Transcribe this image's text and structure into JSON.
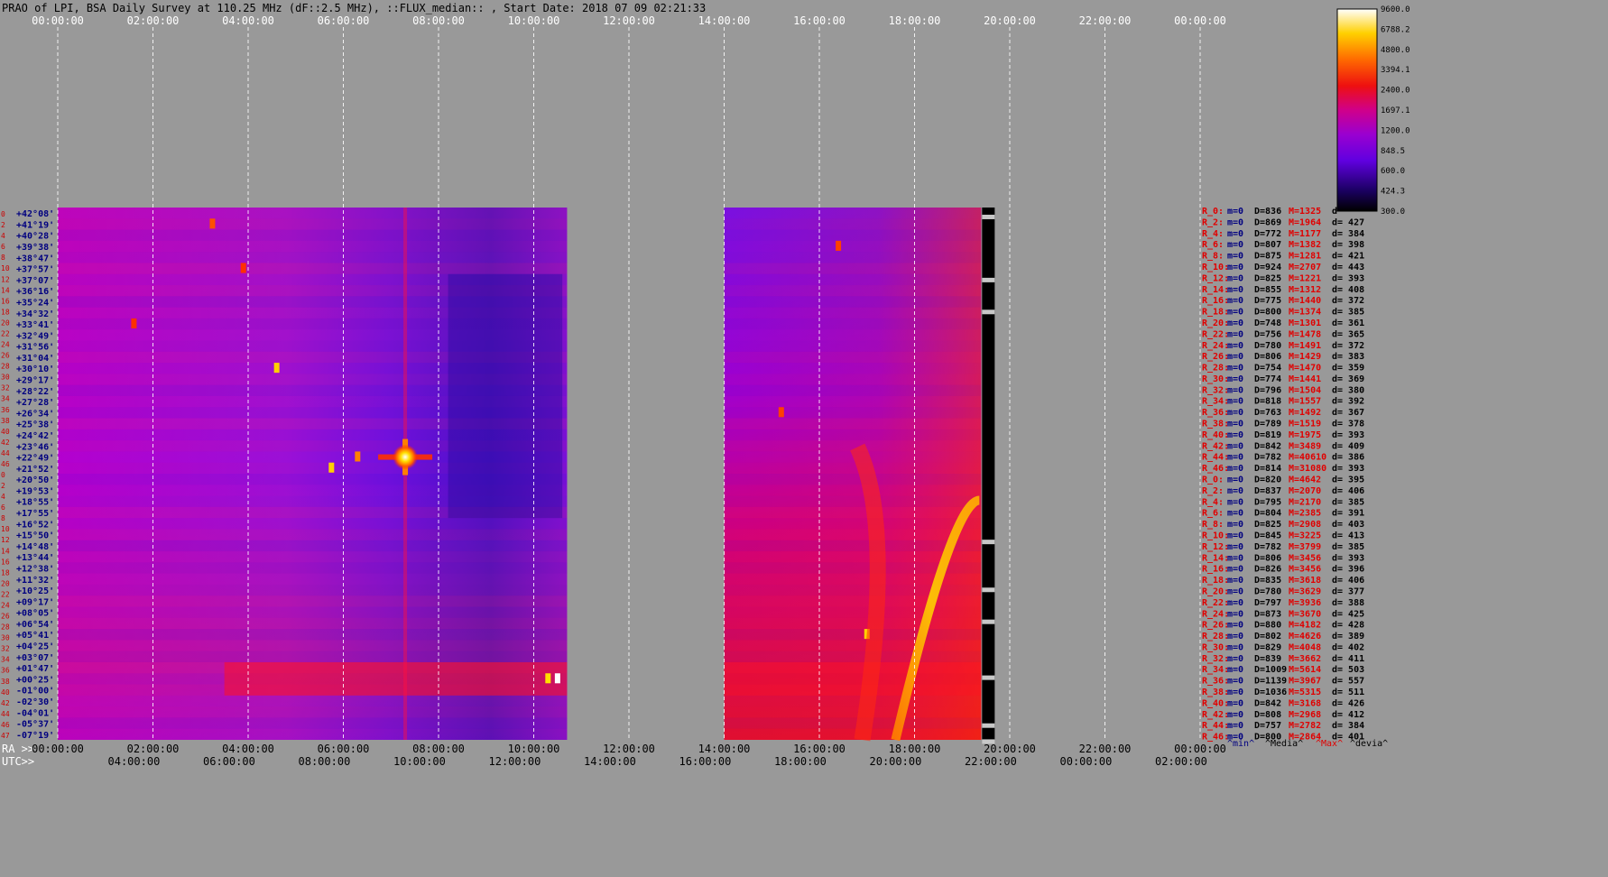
{
  "chart_data": {
    "type": "heatmap",
    "title": "PRAO of LPI, BSA Daily Survey at 110.25 MHz (dF::2.5 MHz), ::FLUX_median:: , Start Date: 2018 07 09 02:21:33",
    "top_axis_ticks": [
      "00:00:00",
      "02:00:00",
      "04:00:00",
      "06:00:00",
      "08:00:00",
      "10:00:00",
      "12:00:00",
      "14:00:00",
      "16:00:00",
      "18:00:00",
      "20:00:00",
      "22:00:00",
      "00:00:00"
    ],
    "ra_axis_label": "RA >>",
    "ra_axis_ticks": [
      "00:00:00",
      "02:00:00",
      "04:00:00",
      "06:00:00",
      "08:00:00",
      "10:00:00",
      "12:00:00",
      "14:00:00",
      "16:00:00",
      "18:00:00",
      "20:00:00",
      "22:00:00",
      "00:00:00"
    ],
    "utc_axis_label": "UTC>>",
    "utc_axis_ticks": [
      "04:00:00",
      "06:00:00",
      "08:00:00",
      "10:00:00",
      "12:00:00",
      "14:00:00",
      "16:00:00",
      "18:00:00",
      "20:00:00",
      "22:00:00",
      "00:00:00",
      "02:00:00"
    ],
    "colorbar_ticks": [
      "9600.0",
      "6788.2",
      "4800.0",
      "3394.1",
      "2400.0",
      "1697.1",
      "1200.0",
      "848.5",
      "600.0",
      "424.3",
      "300.0"
    ],
    "colorbar_range": [
      300,
      9600
    ],
    "colorbar_scale": "log",
    "data_gap_hours": [
      10.7,
      14.0
    ],
    "data_end_hours": 19.4,
    "declinations": [
      "+42°08'",
      "+41°19'",
      "+40°28'",
      "+39°38'",
      "+38°47'",
      "+37°57'",
      "+37°07'",
      "+36°16'",
      "+35°24'",
      "+34°32'",
      "+33°41'",
      "+32°49'",
      "+31°56'",
      "+31°04'",
      "+30°10'",
      "+29°17'",
      "+28°22'",
      "+27°28'",
      "+26°34'",
      "+25°38'",
      "+24°42'",
      "+23°46'",
      "+22°49'",
      "+21°52'",
      "+20°50'",
      "+19°53'",
      "+18°55'",
      "+17°55'",
      "+16°52'",
      "+15°50'",
      "+14°48'",
      "+13°44'",
      "+12°38'",
      "+11°32'",
      "+10°25'",
      "+09°17'",
      "+08°05'",
      "+06°54'",
      "+05°41'",
      "+04°25'",
      "+03°07'",
      "+01°47'",
      "+00°25'",
      "-01°00'",
      "-02°30'",
      "-04°01'",
      "-05°37'",
      "-07°19'"
    ],
    "row_numbers": [
      "0",
      "2",
      "4",
      "6",
      "8",
      "10",
      "12",
      "14",
      "16",
      "18",
      "20",
      "22",
      "24",
      "26",
      "28",
      "30",
      "32",
      "34",
      "36",
      "38",
      "40",
      "42",
      "44",
      "46",
      "0",
      "2",
      "4",
      "6",
      "8",
      "10",
      "12",
      "14",
      "16",
      "18",
      "20",
      "22",
      "24",
      "26",
      "28",
      "30",
      "32",
      "34",
      "36",
      "38",
      "40",
      "42",
      "44",
      "46",
      "47"
    ],
    "stats_rows": [
      {
        "label": "R_0:",
        "m": "m=0",
        "D": "D=836",
        "M": "M=1325",
        "d": "d"
      },
      {
        "label": "R_2:",
        "m": "m=0",
        "D": "D=869",
        "M": "M=1964",
        "d": "d= 427"
      },
      {
        "label": "R_4:",
        "m": "m=0",
        "D": "D=772",
        "M": "M=1177",
        "d": "d= 384"
      },
      {
        "label": "R_6:",
        "m": "m=0",
        "D": "D=807",
        "M": "M=1382",
        "d": "d= 398"
      },
      {
        "label": "R_8:",
        "m": "m=0",
        "D": "D=875",
        "M": "M=1281",
        "d": "d= 421"
      },
      {
        "label": "R_10:",
        "m": "m=0",
        "D": "D=924",
        "M": "M=2707",
        "d": "d= 443"
      },
      {
        "label": "R_12:",
        "m": "m=0",
        "D": "D=825",
        "M": "M=1221",
        "d": "d= 393"
      },
      {
        "label": "R_14:",
        "m": "m=0",
        "D": "D=855",
        "M": "M=1312",
        "d": "d= 408"
      },
      {
        "label": "R_16:",
        "m": "m=0",
        "D": "D=775",
        "M": "M=1440",
        "d": "d= 372"
      },
      {
        "label": "R_18:",
        "m": "m=0",
        "D": "D=800",
        "M": "M=1374",
        "d": "d= 385"
      },
      {
        "label": "R_20:",
        "m": "m=0",
        "D": "D=748",
        "M": "M=1301",
        "d": "d= 361"
      },
      {
        "label": "R_22:",
        "m": "m=0",
        "D": "D=756",
        "M": "M=1478",
        "d": "d= 365"
      },
      {
        "label": "R_24:",
        "m": "m=0",
        "D": "D=780",
        "M": "M=1491",
        "d": "d= 372"
      },
      {
        "label": "R_26:",
        "m": "m=0",
        "D": "D=806",
        "M": "M=1429",
        "d": "d= 383"
      },
      {
        "label": "R_28:",
        "m": "m=0",
        "D": "D=754",
        "M": "M=1470",
        "d": "d= 359"
      },
      {
        "label": "R_30:",
        "m": "m=0",
        "D": "D=774",
        "M": "M=1441",
        "d": "d= 369"
      },
      {
        "label": "R_32:",
        "m": "m=0",
        "D": "D=796",
        "M": "M=1504",
        "d": "d= 380"
      },
      {
        "label": "R_34:",
        "m": "m=0",
        "D": "D=818",
        "M": "M=1557",
        "d": "d= 392"
      },
      {
        "label": "R_36:",
        "m": "m=0",
        "D": "D=763",
        "M": "M=1492",
        "d": "d= 367"
      },
      {
        "label": "R_38:",
        "m": "m=0",
        "D": "D=789",
        "M": "M=1519",
        "d": "d= 378"
      },
      {
        "label": "R_40:",
        "m": "m=0",
        "D": "D=819",
        "M": "M=1975",
        "d": "d= 393"
      },
      {
        "label": "R_42:",
        "m": "m=0",
        "D": "D=842",
        "M": "M=3489",
        "d": "d= 409"
      },
      {
        "label": "R_44:",
        "m": "m=0",
        "D": "D=782",
        "M": "M=40610",
        "d": "d= 386"
      },
      {
        "label": "R_46:",
        "m": "m=0",
        "D": "D=814",
        "M": "M=31080",
        "d": "d= 393"
      },
      {
        "label": "R_0:",
        "m": "m=0",
        "D": "D=820",
        "M": "M=4642",
        "d": "d= 395"
      },
      {
        "label": "R_2:",
        "m": "m=0",
        "D": "D=837",
        "M": "M=2070",
        "d": "d= 406"
      },
      {
        "label": "R_4:",
        "m": "m=0",
        "D": "D=795",
        "M": "M=2170",
        "d": "d= 385"
      },
      {
        "label": "R_6:",
        "m": "m=0",
        "D": "D=804",
        "M": "M=2385",
        "d": "d= 391"
      },
      {
        "label": "R_8:",
        "m": "m=0",
        "D": "D=825",
        "M": "M=2908",
        "d": "d= 403"
      },
      {
        "label": "R_10:",
        "m": "m=0",
        "D": "D=845",
        "M": "M=3225",
        "d": "d= 413"
      },
      {
        "label": "R_12:",
        "m": "m=0",
        "D": "D=782",
        "M": "M=3799",
        "d": "d= 385"
      },
      {
        "label": "R_14:",
        "m": "m=0",
        "D": "D=806",
        "M": "M=3456",
        "d": "d= 393"
      },
      {
        "label": "R_16:",
        "m": "m=0",
        "D": "D=826",
        "M": "M=3456",
        "d": "d= 396"
      },
      {
        "label": "R_18:",
        "m": "m=0",
        "D": "D=835",
        "M": "M=3618",
        "d": "d= 406"
      },
      {
        "label": "R_20:",
        "m": "m=0",
        "D": "D=780",
        "M": "M=3629",
        "d": "d= 377"
      },
      {
        "label": "R_22:",
        "m": "m=0",
        "D": "D=797",
        "M": "M=3936",
        "d": "d= 388"
      },
      {
        "label": "R_24:",
        "m": "m=0",
        "D": "D=873",
        "M": "M=3670",
        "d": "d= 425"
      },
      {
        "label": "R_26:",
        "m": "m=0",
        "D": "D=880",
        "M": "M=4182",
        "d": "d= 428"
      },
      {
        "label": "R_28:",
        "m": "m=0",
        "D": "D=802",
        "M": "M=4626",
        "d": "d= 389"
      },
      {
        "label": "R_30:",
        "m": "m=0",
        "D": "D=829",
        "M": "M=4048",
        "d": "d= 402"
      },
      {
        "label": "R_32:",
        "m": "m=0",
        "D": "D=839",
        "M": "M=3662",
        "d": "d= 411"
      },
      {
        "label": "R_34:",
        "m": "m=0",
        "D": "D=1009",
        "M": "M=5614",
        "d": "d= 503"
      },
      {
        "label": "R_36:",
        "m": "m=0",
        "D": "D=1139",
        "M": "M=3967",
        "d": "d= 557"
      },
      {
        "label": "R_38:",
        "m": "m=0",
        "D": "D=1036",
        "M": "M=5315",
        "d": "d= 511"
      },
      {
        "label": "R_40:",
        "m": "m=0",
        "D": "D=842",
        "M": "M=3168",
        "d": "d= 426"
      },
      {
        "label": "R_42:",
        "m": "m=0",
        "D": "D=808",
        "M": "M=2968",
        "d": "d= 412"
      },
      {
        "label": "R_44:",
        "m": "m=0",
        "D": "D=757",
        "M": "M=2782",
        "d": "d= 384"
      },
      {
        "label": "R_46:",
        "m": "m=0",
        "D": "D=800",
        "M": "M=2864",
        "d": "d= 401"
      }
    ],
    "stats_legend": [
      "^min^",
      "^Media^",
      "^Max^",
      "^devia^"
    ],
    "colors": {
      "background": "#999999",
      "title_text": "#000000",
      "row_number": "#cc0000",
      "declination": "#000080",
      "stats_label": "#e00000",
      "stats_m": "#000080",
      "stats_D": "#000000",
      "stats_M": "#e00000",
      "stats_d": "#000000",
      "grid": "#ffffff"
    }
  }
}
